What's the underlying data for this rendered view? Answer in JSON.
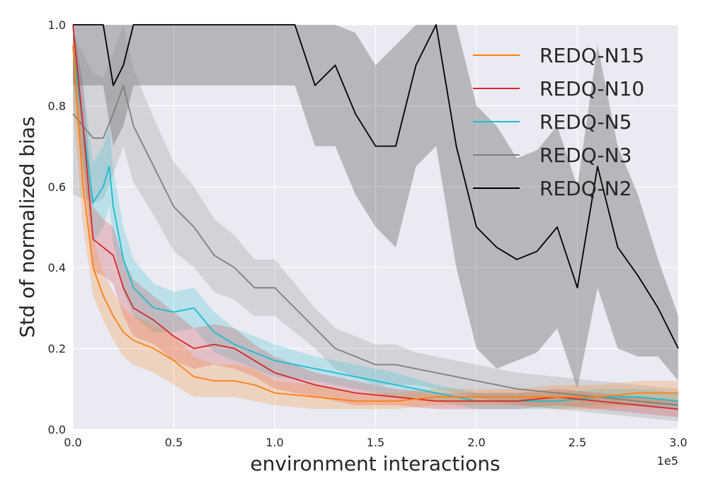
{
  "chart_data": {
    "type": "line",
    "xlabel": "environment interactions",
    "ylabel": "Std of normalized bias",
    "x_offset_label": "1e5",
    "xlim": [
      0,
      3.0
    ],
    "ylim": [
      0,
      1.0
    ],
    "x_ticks": [
      0.0,
      0.5,
      1.0,
      1.5,
      2.0,
      2.5,
      3.0
    ],
    "x_tick_labels": [
      "0.0",
      "0.5",
      "1.0",
      "1.5",
      "2.0",
      "2.5",
      "3.0"
    ],
    "y_ticks": [
      0.0,
      0.2,
      0.4,
      0.6,
      0.8,
      1.0
    ],
    "y_tick_labels": [
      "0.0",
      "0.2",
      "0.4",
      "0.6",
      "0.8",
      "1.0"
    ],
    "grid": true,
    "legend_position": "top-right",
    "series": [
      {
        "name": "REDQ-N15",
        "color": "#ff7f0e",
        "x": [
          0.0,
          0.05,
          0.1,
          0.15,
          0.2,
          0.25,
          0.3,
          0.4,
          0.5,
          0.6,
          0.7,
          0.8,
          0.9,
          1.0,
          1.2,
          1.4,
          1.6,
          1.8,
          2.0,
          2.2,
          2.4,
          2.6,
          2.8,
          3.0
        ],
        "y": [
          0.95,
          0.6,
          0.4,
          0.33,
          0.28,
          0.24,
          0.22,
          0.2,
          0.17,
          0.13,
          0.12,
          0.12,
          0.11,
          0.09,
          0.08,
          0.07,
          0.07,
          0.08,
          0.08,
          0.08,
          0.08,
          0.08,
          0.09,
          0.09
        ],
        "band": [
          0.15,
          0.1,
          0.07,
          0.06,
          0.06,
          0.06,
          0.06,
          0.06,
          0.06,
          0.05,
          0.04,
          0.04,
          0.04,
          0.03,
          0.03,
          0.02,
          0.02,
          0.02,
          0.02,
          0.02,
          0.03,
          0.03,
          0.03,
          0.03
        ]
      },
      {
        "name": "REDQ-N10",
        "color": "#d62728",
        "x": [
          0.0,
          0.05,
          0.1,
          0.15,
          0.2,
          0.25,
          0.3,
          0.4,
          0.5,
          0.6,
          0.7,
          0.8,
          0.9,
          1.0,
          1.2,
          1.4,
          1.6,
          1.8,
          2.0,
          2.2,
          2.4,
          2.6,
          2.8,
          3.0
        ],
        "y": [
          1.0,
          0.75,
          0.47,
          0.45,
          0.43,
          0.35,
          0.3,
          0.27,
          0.23,
          0.2,
          0.21,
          0.2,
          0.17,
          0.14,
          0.11,
          0.09,
          0.08,
          0.07,
          0.07,
          0.07,
          0.08,
          0.07,
          0.06,
          0.05
        ],
        "band": [
          0.12,
          0.1,
          0.08,
          0.07,
          0.07,
          0.07,
          0.07,
          0.06,
          0.06,
          0.05,
          0.05,
          0.05,
          0.04,
          0.04,
          0.03,
          0.03,
          0.02,
          0.02,
          0.02,
          0.02,
          0.02,
          0.02,
          0.02,
          0.02
        ]
      },
      {
        "name": "REDQ-N5",
        "color": "#17becf",
        "x": [
          0.0,
          0.05,
          0.1,
          0.15,
          0.18,
          0.2,
          0.25,
          0.3,
          0.4,
          0.5,
          0.6,
          0.7,
          0.8,
          0.9,
          1.0,
          1.2,
          1.4,
          1.6,
          1.8,
          2.0,
          2.2,
          2.4,
          2.6,
          2.8,
          3.0
        ],
        "y": [
          0.94,
          0.75,
          0.56,
          0.6,
          0.65,
          0.55,
          0.42,
          0.35,
          0.3,
          0.29,
          0.3,
          0.24,
          0.21,
          0.19,
          0.17,
          0.15,
          0.13,
          0.11,
          0.09,
          0.07,
          0.07,
          0.07,
          0.08,
          0.08,
          0.07
        ],
        "band": [
          0.12,
          0.1,
          0.1,
          0.1,
          0.1,
          0.09,
          0.08,
          0.07,
          0.06,
          0.05,
          0.05,
          0.05,
          0.04,
          0.04,
          0.04,
          0.03,
          0.03,
          0.03,
          0.02,
          0.02,
          0.02,
          0.02,
          0.02,
          0.02,
          0.02
        ]
      },
      {
        "name": "REDQ-N3",
        "color": "#7f7f7f",
        "x": [
          0.0,
          0.05,
          0.1,
          0.15,
          0.2,
          0.25,
          0.3,
          0.4,
          0.5,
          0.6,
          0.7,
          0.8,
          0.9,
          1.0,
          1.1,
          1.2,
          1.3,
          1.4,
          1.5,
          1.6,
          1.7,
          1.8,
          1.9,
          2.0,
          2.2,
          2.4,
          2.6,
          2.8,
          3.0
        ],
        "y": [
          0.78,
          0.75,
          0.72,
          0.72,
          0.78,
          0.85,
          0.75,
          0.65,
          0.55,
          0.5,
          0.43,
          0.4,
          0.35,
          0.35,
          0.3,
          0.25,
          0.2,
          0.18,
          0.16,
          0.16,
          0.15,
          0.14,
          0.13,
          0.12,
          0.1,
          0.09,
          0.08,
          0.07,
          0.06
        ],
        "band": [
          0.2,
          0.18,
          0.16,
          0.15,
          0.15,
          0.15,
          0.14,
          0.12,
          0.11,
          0.1,
          0.09,
          0.08,
          0.07,
          0.07,
          0.06,
          0.05,
          0.05,
          0.05,
          0.05,
          0.05,
          0.04,
          0.04,
          0.04,
          0.04,
          0.04,
          0.04,
          0.04,
          0.04,
          0.04
        ]
      },
      {
        "name": "REDQ-N2",
        "color": "#000000",
        "x": [
          0.0,
          0.05,
          0.1,
          0.15,
          0.2,
          0.25,
          0.3,
          0.4,
          0.5,
          0.6,
          0.7,
          0.8,
          0.9,
          1.0,
          1.1,
          1.2,
          1.3,
          1.4,
          1.5,
          1.6,
          1.7,
          1.8,
          1.9,
          2.0,
          2.1,
          2.2,
          2.3,
          2.4,
          2.5,
          2.6,
          2.7,
          2.8,
          2.9,
          3.0
        ],
        "y": [
          1.0,
          1.0,
          1.0,
          1.0,
          0.85,
          0.9,
          1.0,
          1.0,
          1.0,
          1.0,
          1.0,
          1.0,
          1.0,
          1.0,
          1.0,
          0.85,
          0.9,
          0.78,
          0.7,
          0.7,
          0.9,
          1.0,
          0.7,
          0.5,
          0.45,
          0.42,
          0.44,
          0.5,
          0.35,
          0.65,
          0.45,
          0.38,
          0.3,
          0.2
        ],
        "band": [
          0.15,
          0.15,
          0.15,
          0.15,
          0.15,
          0.15,
          0.15,
          0.15,
          0.15,
          0.15,
          0.15,
          0.15,
          0.15,
          0.15,
          0.15,
          0.15,
          0.2,
          0.2,
          0.2,
          0.25,
          0.25,
          0.3,
          0.3,
          0.3,
          0.3,
          0.25,
          0.25,
          0.25,
          0.25,
          0.3,
          0.25,
          0.2,
          0.12,
          0.08
        ]
      }
    ]
  }
}
